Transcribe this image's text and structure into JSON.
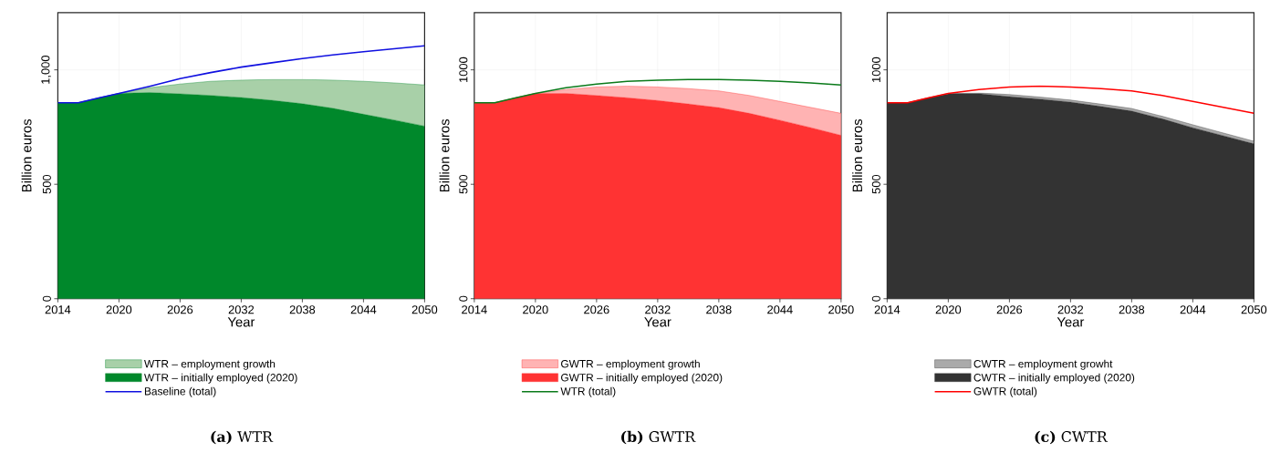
{
  "chart_data": [
    {
      "type": "area",
      "title": "**(a)** WTR",
      "xlabel": "Year",
      "ylabel": "Billion euros",
      "stacked": true,
      "grid": true,
      "legend": "bottom",
      "x": [
        2014,
        2016,
        2018,
        2020,
        2023,
        2026,
        2029,
        2032,
        2035,
        2038,
        2041,
        2044,
        2047,
        2050
      ],
      "xlim": [
        2014,
        2050
      ],
      "xticks": [
        2014,
        2020,
        2026,
        2032,
        2038,
        2044,
        2050
      ],
      "ylim": [
        0,
        1250
      ],
      "yticks": [
        0,
        500,
        {
          "value": 1000,
          "label": "1,000"
        }
      ],
      "series": [
        {
          "name": "WTR – initially employed (2020)",
          "color": "#00882b",
          "values": [
            856,
            856,
            877,
            897,
            901,
            895,
            888,
            879,
            867,
            852,
            832,
            806,
            781,
            754
          ]
        },
        {
          "name": "WTR – employment growth",
          "color": "#a8d0a8",
          "values": [
            0,
            0,
            0,
            0,
            21,
            43,
            62,
            76,
            91,
            106,
            123,
            144,
            162,
            180
          ]
        },
        {
          "name": "Baseline (total)",
          "type": "line",
          "color": "#1010e0",
          "values": [
            856,
            856,
            877,
            897,
            928,
            962,
            988,
            1012,
            1031,
            1049,
            1065,
            1079,
            1092,
            1105
          ]
        }
      ]
    },
    {
      "type": "area",
      "title": "**(b)** GWTR",
      "xlabel": "Year",
      "ylabel": "Billion euros",
      "stacked": true,
      "grid": true,
      "legend": "bottom",
      "x": [
        2014,
        2016,
        2018,
        2020,
        2023,
        2026,
        2029,
        2032,
        2035,
        2038,
        2041,
        2044,
        2047,
        2050
      ],
      "xlim": [
        2014,
        2050
      ],
      "xticks": [
        2014,
        2020,
        2026,
        2032,
        2038,
        2044,
        2050
      ],
      "ylim": [
        0,
        1250
      ],
      "yticks": [
        0,
        500,
        1000
      ],
      "series": [
        {
          "name": "GWTR – initially employed (2020)",
          "color": "#ff3333",
          "values": [
            856,
            856,
            877,
            897,
            897,
            888,
            878,
            866,
            851,
            835,
            810,
            780,
            748,
            714
          ]
        },
        {
          "name": "GWTR – employment growth",
          "color": "#ffb3b3",
          "values": [
            0,
            0,
            0,
            0,
            17,
            37,
            51,
            59,
            67,
            73,
            78,
            82,
            88,
            96
          ]
        },
        {
          "name": "WTR (total)",
          "type": "line",
          "color": "#0a7a1a",
          "values": [
            856,
            856,
            877,
            897,
            922,
            938,
            950,
            955,
            958,
            958,
            955,
            950,
            943,
            934
          ]
        }
      ]
    },
    {
      "type": "area",
      "title": "**(c)** CWTR",
      "xlabel": "Year",
      "ylabel": "Billion euros",
      "stacked": true,
      "grid": true,
      "legend": "bottom",
      "x": [
        2014,
        2016,
        2018,
        2020,
        2023,
        2026,
        2029,
        2032,
        2035,
        2038,
        2041,
        2044,
        2047,
        2050
      ],
      "xlim": [
        2014,
        2050
      ],
      "xticks": [
        2014,
        2020,
        2026,
        2032,
        2038,
        2044,
        2050
      ],
      "ylim": [
        0,
        1250
      ],
      "yticks": [
        0,
        500,
        1000
      ],
      "series": [
        {
          "name": "CWTR – initially employed (2020)",
          "color": "#333333",
          "values": [
            856,
            856,
            877,
            895,
            896,
            883,
            872,
            859,
            840,
            820,
            786,
            747,
            712,
            677
          ]
        },
        {
          "name": "CWTR – employment growht",
          "color": "#aaaaaa",
          "values": [
            0,
            0,
            0,
            2,
            3,
            9,
            9,
            9,
            10,
            11,
            11,
            13,
            12,
            11
          ]
        },
        {
          "name": "GWTR (total)",
          "type": "line",
          "color": "#ff0000",
          "values": [
            856,
            856,
            877,
            897,
            914,
            925,
            929,
            925,
            918,
            908,
            888,
            862,
            836,
            810
          ]
        }
      ]
    }
  ]
}
